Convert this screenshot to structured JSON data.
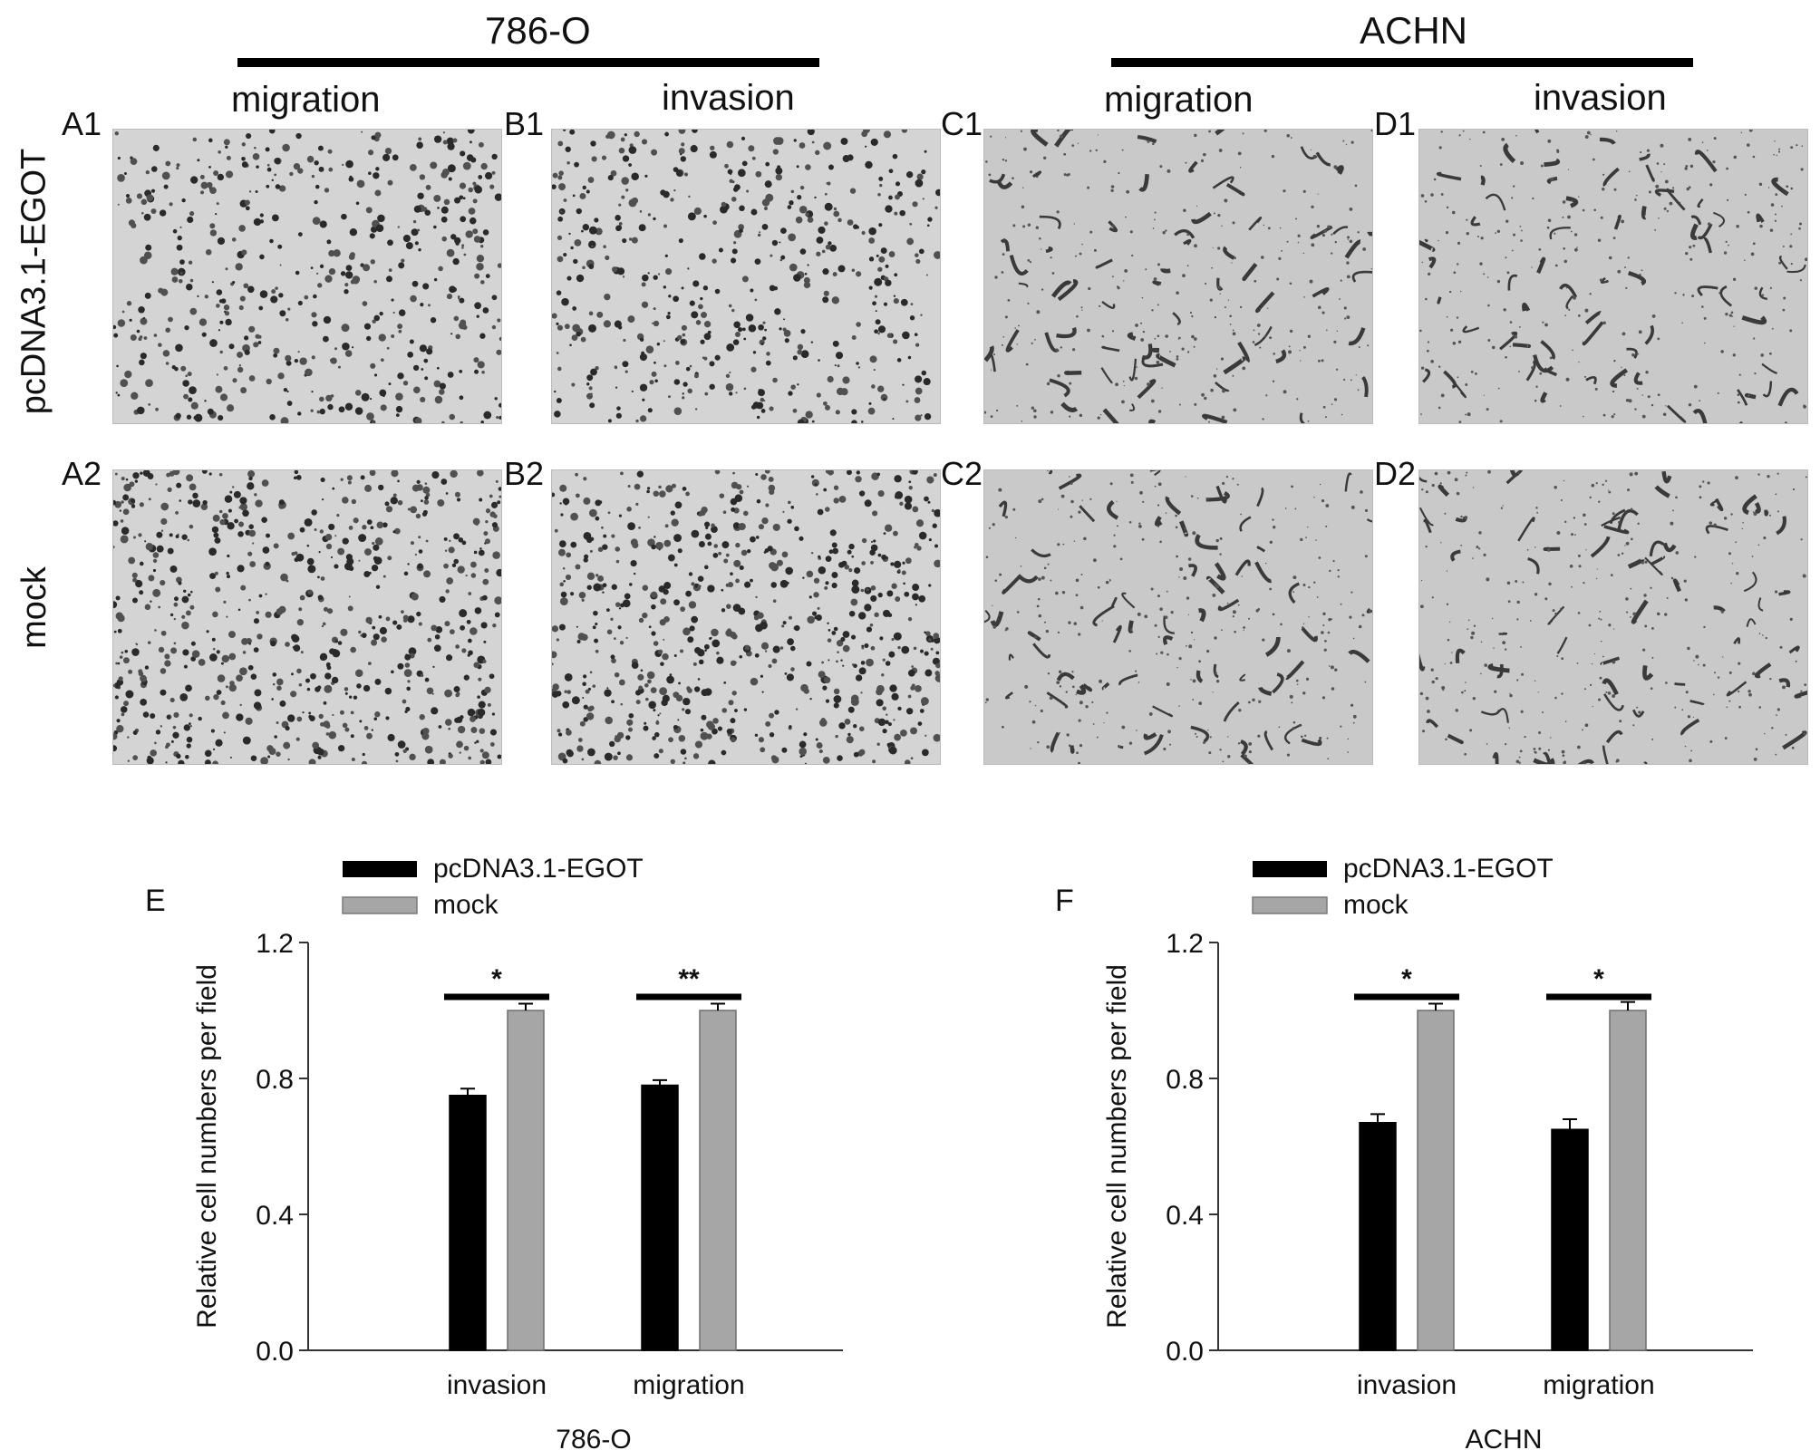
{
  "figure": {
    "groups": [
      {
        "title": "786-O"
      },
      {
        "title": "ACHN"
      }
    ],
    "columns": [
      "migration",
      "invasion",
      "migration",
      "invasion"
    ],
    "rows": [
      "pcDNA3.1-EGOT",
      "mock"
    ],
    "panels": [
      {
        "label": "A1",
        "texture": "786O"
      },
      {
        "label": "B1",
        "texture": "786O"
      },
      {
        "label": "C1",
        "texture": "ACHN"
      },
      {
        "label": "D1",
        "texture": "ACHN"
      },
      {
        "label": "A2",
        "texture": "786O"
      },
      {
        "label": "B2",
        "texture": "786O"
      },
      {
        "label": "C2",
        "texture": "ACHN"
      },
      {
        "label": "D2",
        "texture": "ACHN"
      }
    ]
  },
  "chart_data": [
    {
      "panel_label": "E",
      "type": "bar",
      "xlabel": "786-O",
      "ylabel": "Relative cell numbers per field",
      "ylim": [
        0,
        1.2
      ],
      "yticks": [
        "0.0",
        "0.4",
        "0.8",
        "1.2"
      ],
      "categories": [
        "invasion",
        "migration"
      ],
      "series": [
        {
          "name": "pcDNA3.1-EGOT",
          "values": [
            0.75,
            0.78
          ],
          "errors": [
            0.02,
            0.015
          ],
          "color": "#000000"
        },
        {
          "name": "mock",
          "values": [
            1.0,
            1.0
          ],
          "errors": [
            0.02,
            0.02
          ],
          "color": "#a6a6a6"
        }
      ],
      "significance": [
        "*",
        "**"
      ],
      "legend": "top-left"
    },
    {
      "panel_label": "F",
      "type": "bar",
      "xlabel": "ACHN",
      "ylabel": "Relative cell numbers per field",
      "ylim": [
        0,
        1.2
      ],
      "yticks": [
        "0.0",
        "0.4",
        "0.8",
        "1.2"
      ],
      "categories": [
        "invasion",
        "migration"
      ],
      "series": [
        {
          "name": "pcDNA3.1-EGOT",
          "values": [
            0.67,
            0.65
          ],
          "errors": [
            0.025,
            0.03
          ],
          "color": "#000000"
        },
        {
          "name": "mock",
          "values": [
            1.0,
            1.0
          ],
          "errors": [
            0.02,
            0.025
          ],
          "color": "#a6a6a6"
        }
      ],
      "significance": [
        "*",
        "*"
      ],
      "legend": "top-left"
    }
  ]
}
